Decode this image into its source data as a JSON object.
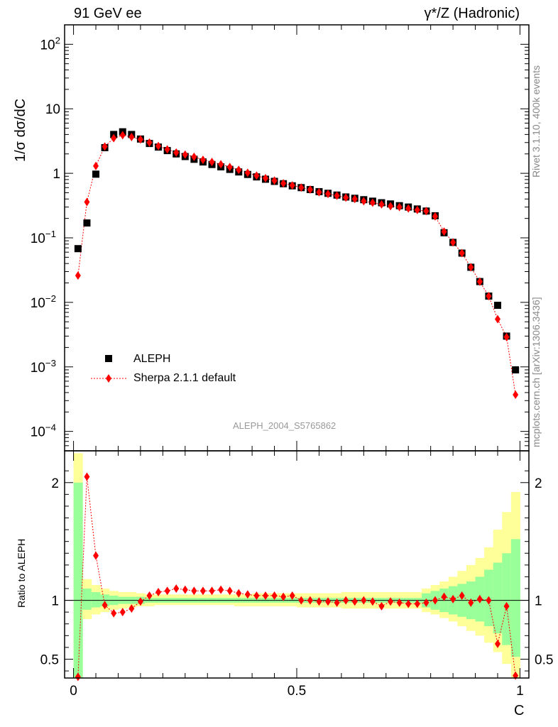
{
  "header": {
    "left": "91 GeV ee",
    "right": "γ*/Z (Hadronic)"
  },
  "side_text": {
    "rivet": "Rivet 3.1.10,  400k events",
    "mcplots": "mcplots.cern.ch [arXiv:1306.3436]"
  },
  "watermark": "ALEPH_2004_S5765862",
  "colors": {
    "data": "#000000",
    "mc": "#ff0000",
    "band_inner": "#99ff99",
    "band_outer": "#ffff99"
  },
  "chart_data": [
    {
      "type": "scatter",
      "title": "",
      "ylabel": "1/σ  dσ/dC",
      "yscale": "log",
      "ylim": [
        5e-05,
        200
      ],
      "xlim": [
        -0.02,
        1.02
      ],
      "yticks": [
        {
          "value": 0.0001,
          "label": "10",
          "exp": "−4"
        },
        {
          "value": 0.001,
          "label": "10",
          "exp": "−3"
        },
        {
          "value": 0.01,
          "label": "10",
          "exp": "−2"
        },
        {
          "value": 0.1,
          "label": "10",
          "exp": "−1"
        },
        {
          "value": 1,
          "label": "1",
          "exp": ""
        },
        {
          "value": 10,
          "label": "10",
          "exp": ""
        },
        {
          "value": 100,
          "label": "10",
          "exp": "2"
        }
      ],
      "legend": {
        "position": "bottom-left",
        "data_label": "ALEPH",
        "mc_label": "Sherpa 2.1.1 default"
      },
      "x": [
        0.01,
        0.03,
        0.05,
        0.07,
        0.09,
        0.11,
        0.13,
        0.15,
        0.17,
        0.19,
        0.21,
        0.23,
        0.25,
        0.27,
        0.29,
        0.31,
        0.33,
        0.35,
        0.37,
        0.39,
        0.41,
        0.43,
        0.45,
        0.47,
        0.49,
        0.51,
        0.53,
        0.55,
        0.57,
        0.59,
        0.61,
        0.63,
        0.65,
        0.67,
        0.69,
        0.71,
        0.73,
        0.75,
        0.77,
        0.79,
        0.81,
        0.83,
        0.85,
        0.87,
        0.89,
        0.91,
        0.93,
        0.95,
        0.97,
        0.99
      ],
      "series": [
        {
          "name": "ALEPH",
          "values": [
            0.068,
            0.17,
            0.97,
            2.5,
            4.0,
            4.4,
            4.0,
            3.4,
            2.9,
            2.55,
            2.25,
            2.0,
            1.82,
            1.65,
            1.5,
            1.37,
            1.26,
            1.15,
            1.05,
            0.96,
            0.88,
            0.81,
            0.75,
            0.69,
            0.64,
            0.6,
            0.56,
            0.52,
            0.49,
            0.46,
            0.43,
            0.41,
            0.39,
            0.37,
            0.35,
            0.335,
            0.315,
            0.3,
            0.28,
            0.26,
            0.22,
            0.12,
            0.085,
            0.058,
            0.035,
            0.021,
            0.0125,
            0.009,
            0.003,
            0.0009
          ]
        },
        {
          "name": "Sherpa 2.1.1 default",
          "values": [
            0.026,
            0.36,
            1.3,
            2.6,
            3.5,
            3.9,
            3.65,
            3.35,
            3.0,
            2.65,
            2.35,
            2.1,
            1.95,
            1.8,
            1.62,
            1.5,
            1.38,
            1.25,
            1.13,
            1.02,
            0.92,
            0.84,
            0.77,
            0.7,
            0.65,
            0.6,
            0.56,
            0.51,
            0.48,
            0.45,
            0.42,
            0.4,
            0.37,
            0.35,
            0.33,
            0.31,
            0.3,
            0.285,
            0.27,
            0.26,
            0.215,
            0.125,
            0.085,
            0.058,
            0.035,
            0.021,
            0.0125,
            0.0055,
            0.0029,
            0.00037
          ]
        }
      ]
    },
    {
      "type": "scatter",
      "title": "",
      "ylabel": "Ratio to ALEPH",
      "xlabel": "C",
      "xlim": [
        -0.02,
        1.02
      ],
      "ylim": [
        0.34,
        2.27
      ],
      "yticks": [
        0.5,
        1,
        2
      ],
      "xticks": [
        0,
        0.5,
        1
      ],
      "xtick_labels": [
        "0",
        "0.5",
        "1"
      ],
      "x": [
        0.01,
        0.03,
        0.05,
        0.07,
        0.09,
        0.11,
        0.13,
        0.15,
        0.17,
        0.19,
        0.21,
        0.23,
        0.25,
        0.27,
        0.29,
        0.31,
        0.33,
        0.35,
        0.37,
        0.39,
        0.41,
        0.43,
        0.45,
        0.47,
        0.49,
        0.51,
        0.53,
        0.55,
        0.57,
        0.59,
        0.61,
        0.63,
        0.65,
        0.67,
        0.69,
        0.71,
        0.73,
        0.75,
        0.77,
        0.79,
        0.81,
        0.83,
        0.85,
        0.87,
        0.89,
        0.91,
        0.93,
        0.95,
        0.97,
        0.99
      ],
      "ratio": [
        0.35,
        2.05,
        1.38,
        0.96,
        0.89,
        0.9,
        0.93,
        0.99,
        1.04,
        1.07,
        1.08,
        1.1,
        1.09,
        1.08,
        1.08,
        1.08,
        1.09,
        1.08,
        1.06,
        1.05,
        1.04,
        1.04,
        1.04,
        1.03,
        1.04,
        1.0,
        1.0,
        0.99,
        0.99,
        0.98,
        1.0,
        0.99,
        1.0,
        0.99,
        0.95,
        0.99,
        0.98,
        0.97,
        0.97,
        0.98,
        1.0,
        1.03,
        1.01,
        1.04,
        0.98,
        1.01,
        1.0,
        0.63,
        0.95,
        0.36
      ],
      "stat_band": [
        [
          0.3,
          2.0
        ],
        [
          0.92,
          1.1
        ],
        [
          0.94,
          1.07
        ],
        [
          0.95,
          1.05
        ],
        [
          0.96,
          1.04
        ],
        [
          0.97,
          1.03
        ],
        [
          0.97,
          1.03
        ],
        [
          0.97,
          1.03
        ],
        [
          0.98,
          1.02
        ],
        [
          0.98,
          1.02
        ],
        [
          0.98,
          1.02
        ],
        [
          0.98,
          1.02
        ],
        [
          0.98,
          1.02
        ],
        [
          0.98,
          1.02
        ],
        [
          0.98,
          1.02
        ],
        [
          0.98,
          1.02
        ],
        [
          0.98,
          1.02
        ],
        [
          0.98,
          1.02
        ],
        [
          0.98,
          1.02
        ],
        [
          0.98,
          1.02
        ],
        [
          0.98,
          1.02
        ],
        [
          0.98,
          1.02
        ],
        [
          0.98,
          1.02
        ],
        [
          0.98,
          1.02
        ],
        [
          0.98,
          1.02
        ],
        [
          0.98,
          1.02
        ],
        [
          0.98,
          1.02
        ],
        [
          0.98,
          1.02
        ],
        [
          0.98,
          1.02
        ],
        [
          0.98,
          1.02
        ],
        [
          0.98,
          1.02
        ],
        [
          0.98,
          1.02
        ],
        [
          0.98,
          1.02
        ],
        [
          0.98,
          1.02
        ],
        [
          0.98,
          1.02
        ],
        [
          0.98,
          1.02
        ],
        [
          0.98,
          1.02
        ],
        [
          0.98,
          1.02
        ],
        [
          0.98,
          1.02
        ],
        [
          0.94,
          1.06
        ],
        [
          0.92,
          1.08
        ],
        [
          0.9,
          1.1
        ],
        [
          0.88,
          1.12
        ],
        [
          0.86,
          1.14
        ],
        [
          0.84,
          1.16
        ],
        [
          0.82,
          1.2
        ],
        [
          0.78,
          1.26
        ],
        [
          0.72,
          1.32
        ],
        [
          0.62,
          1.4
        ],
        [
          0.52,
          1.52
        ]
      ],
      "total_band": [
        [
          0.3,
          2.25
        ],
        [
          0.84,
          1.18
        ],
        [
          0.88,
          1.13
        ],
        [
          0.9,
          1.1
        ],
        [
          0.92,
          1.08
        ],
        [
          0.93,
          1.07
        ],
        [
          0.94,
          1.07
        ],
        [
          0.95,
          1.06
        ],
        [
          0.95,
          1.05
        ],
        [
          0.96,
          1.05
        ],
        [
          0.96,
          1.05
        ],
        [
          0.96,
          1.05
        ],
        [
          0.96,
          1.05
        ],
        [
          0.96,
          1.05
        ],
        [
          0.96,
          1.05
        ],
        [
          0.96,
          1.05
        ],
        [
          0.96,
          1.05
        ],
        [
          0.96,
          1.05
        ],
        [
          0.95,
          1.05
        ],
        [
          0.95,
          1.05
        ],
        [
          0.95,
          1.06
        ],
        [
          0.95,
          1.06
        ],
        [
          0.95,
          1.06
        ],
        [
          0.95,
          1.06
        ],
        [
          0.95,
          1.06
        ],
        [
          0.94,
          1.06
        ],
        [
          0.94,
          1.06
        ],
        [
          0.94,
          1.06
        ],
        [
          0.94,
          1.06
        ],
        [
          0.94,
          1.06
        ],
        [
          0.93,
          1.07
        ],
        [
          0.93,
          1.07
        ],
        [
          0.93,
          1.07
        ],
        [
          0.93,
          1.07
        ],
        [
          0.93,
          1.07
        ],
        [
          0.93,
          1.07
        ],
        [
          0.93,
          1.07
        ],
        [
          0.93,
          1.07
        ],
        [
          0.93,
          1.07
        ],
        [
          0.9,
          1.1
        ],
        [
          0.88,
          1.13
        ],
        [
          0.85,
          1.16
        ],
        [
          0.82,
          1.2
        ],
        [
          0.78,
          1.25
        ],
        [
          0.74,
          1.3
        ],
        [
          0.7,
          1.36
        ],
        [
          0.64,
          1.45
        ],
        [
          0.56,
          1.6
        ],
        [
          0.46,
          1.75
        ],
        [
          0.34,
          1.92
        ]
      ]
    }
  ]
}
